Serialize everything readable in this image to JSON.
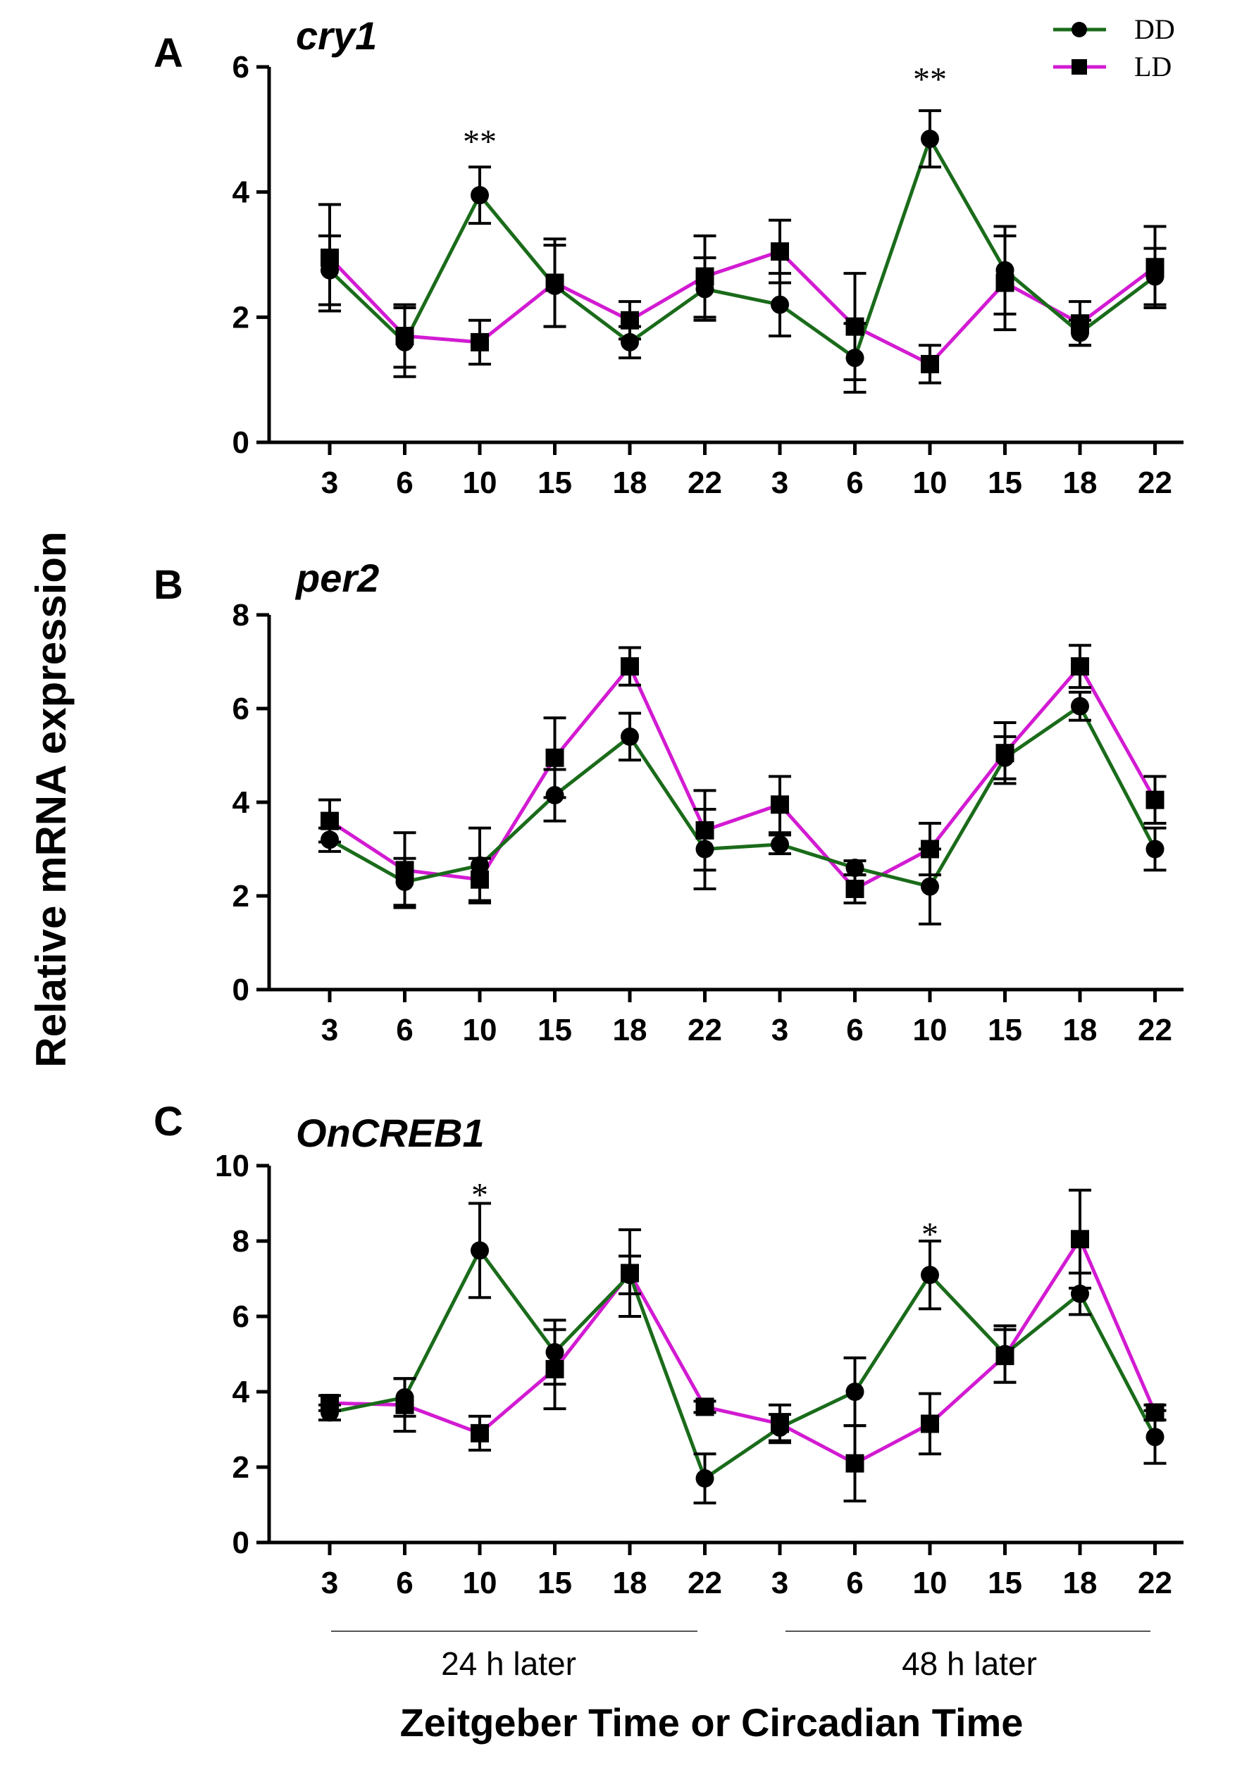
{
  "figure": {
    "ylabel": "Relative mRNA expression",
    "xlabel": "Zeitgeber Time or Circadian Time",
    "periods": [
      "24 h later",
      "48 h later"
    ],
    "legend": [
      {
        "label": "DD",
        "marker": "circle",
        "color": "#1a6b1a"
      },
      {
        "label": "LD",
        "marker": "square",
        "color": "#d21bd2"
      }
    ]
  },
  "chart_data": [
    {
      "type": "line",
      "panel": "A",
      "title": "cry1",
      "categories": [
        "3",
        "6",
        "10",
        "15",
        "18",
        "22",
        "3",
        "6",
        "10",
        "15",
        "18",
        "22"
      ],
      "ylim": [
        0,
        6
      ],
      "yticks": [
        0,
        2,
        4,
        6
      ],
      "series": [
        {
          "name": "DD",
          "marker": "circle",
          "color": "#1a6b1a",
          "values": [
            2.75,
            1.6,
            3.95,
            2.5,
            1.6,
            2.45,
            2.2,
            1.35,
            4.85,
            2.75,
            1.75,
            2.65
          ],
          "errors": [
            0.55,
            0.55,
            0.45,
            0.65,
            0.25,
            0.5,
            0.5,
            0.55,
            0.45,
            0.7,
            0.2,
            0.45
          ]
        },
        {
          "name": "LD",
          "marker": "square",
          "color": "#d21bd2",
          "values": [
            2.95,
            1.7,
            1.6,
            2.55,
            1.95,
            2.65,
            3.05,
            1.85,
            1.25,
            2.55,
            1.9,
            2.8
          ],
          "errors": [
            0.85,
            0.5,
            0.35,
            0.7,
            0.3,
            0.65,
            0.5,
            0.85,
            0.3,
            0.75,
            0.35,
            0.65
          ]
        }
      ],
      "annotations": [
        {
          "label": "**",
          "index": 2,
          "y": 4.85
        },
        {
          "label": "**",
          "index": 8,
          "y": 5.85
        }
      ]
    },
    {
      "type": "line",
      "panel": "B",
      "title": "per2",
      "categories": [
        "3",
        "6",
        "10",
        "15",
        "18",
        "22",
        "3",
        "6",
        "10",
        "15",
        "18",
        "22"
      ],
      "ylim": [
        0,
        8
      ],
      "yticks": [
        0,
        2,
        4,
        6,
        8
      ],
      "series": [
        {
          "name": "DD",
          "marker": "circle",
          "color": "#1a6b1a",
          "values": [
            3.2,
            2.3,
            2.65,
            4.15,
            5.4,
            3.0,
            3.1,
            2.6,
            2.2,
            4.95,
            6.05,
            3.0
          ],
          "errors": [
            0.25,
            0.5,
            0.8,
            0.55,
            0.5,
            0.85,
            0.2,
            0.15,
            0.8,
            0.45,
            0.3,
            0.45
          ]
        },
        {
          "name": "LD",
          "marker": "square",
          "color": "#d21bd2",
          "values": [
            3.6,
            2.55,
            2.35,
            4.95,
            6.9,
            3.4,
            3.95,
            2.15,
            3.0,
            5.05,
            6.9,
            4.05
          ],
          "errors": [
            0.45,
            0.8,
            0.45,
            0.85,
            0.4,
            0.85,
            0.6,
            0.3,
            0.55,
            0.65,
            0.45,
            0.5
          ]
        }
      ],
      "annotations": []
    },
    {
      "type": "line",
      "panel": "C",
      "title": "OnCREB1",
      "categories": [
        "3",
        "6",
        "10",
        "15",
        "18",
        "22",
        "3",
        "6",
        "10",
        "15",
        "18",
        "22"
      ],
      "ylim": [
        0,
        10
      ],
      "yticks": [
        0,
        2,
        4,
        6,
        8,
        10
      ],
      "series": [
        {
          "name": "DD",
          "marker": "circle",
          "color": "#1a6b1a",
          "values": [
            3.45,
            3.85,
            7.75,
            5.05,
            7.1,
            1.7,
            3.05,
            4.0,
            7.1,
            5.0,
            6.6,
            2.8
          ],
          "errors": [
            0.2,
            0.5,
            1.25,
            0.85,
            0.5,
            0.65,
            0.35,
            0.9,
            0.9,
            0.75,
            0.55,
            0.7
          ]
        },
        {
          "name": "LD",
          "marker": "square",
          "color": "#d21bd2",
          "values": [
            3.7,
            3.65,
            2.9,
            4.6,
            7.15,
            3.6,
            3.15,
            2.1,
            3.15,
            4.95,
            8.05,
            3.45
          ],
          "errors": [
            0.2,
            0.7,
            0.45,
            1.05,
            1.15,
            0.15,
            0.5,
            1.0,
            0.8,
            0.7,
            1.3,
            0.2
          ]
        }
      ],
      "annotations": [
        {
          "label": "*",
          "index": 2,
          "y": 9.3
        },
        {
          "label": "*",
          "index": 8,
          "y": 8.25
        }
      ]
    }
  ]
}
